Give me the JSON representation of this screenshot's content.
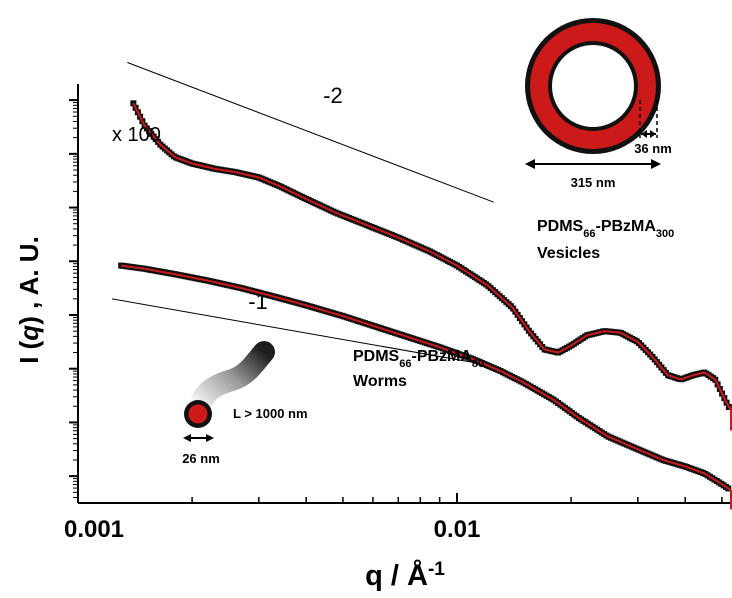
{
  "chart_data": {
    "type": "scatter",
    "xlabel": {
      "base": "q / Å",
      "sup": "-1"
    },
    "ylabel": {
      "pre": "I (",
      "italic": "q",
      "post": ") , A. U."
    },
    "xscale": "log",
    "yscale": "log",
    "xlim": [
      0.001,
      0.065
    ],
    "ylim_decades": [
      -7.5,
      0.3
    ],
    "x_tick_labels": [
      {
        "value": 0.001,
        "label": "0.001"
      },
      {
        "value": 0.01,
        "label": "0.01"
      }
    ],
    "series": [
      {
        "key": "vesicles",
        "marker_color": "#111111",
        "fit_color": "#cc1a1a",
        "points": [
          [
            0.0014,
            -0.06
          ],
          [
            0.0015,
            -0.48
          ],
          [
            0.00165,
            -0.83
          ],
          [
            0.0018,
            -1.06
          ],
          [
            0.002,
            -1.18
          ],
          [
            0.0023,
            -1.28
          ],
          [
            0.0026,
            -1.34
          ],
          [
            0.003,
            -1.44
          ],
          [
            0.0034,
            -1.6
          ],
          [
            0.004,
            -1.84
          ],
          [
            0.0048,
            -2.1
          ],
          [
            0.0058,
            -2.33
          ],
          [
            0.007,
            -2.56
          ],
          [
            0.0085,
            -2.82
          ],
          [
            0.01,
            -3.08
          ],
          [
            0.012,
            -3.44
          ],
          [
            0.014,
            -3.86
          ],
          [
            0.0155,
            -4.3
          ],
          [
            0.017,
            -4.64
          ],
          [
            0.0185,
            -4.7
          ],
          [
            0.02,
            -4.57
          ],
          [
            0.022,
            -4.38
          ],
          [
            0.0245,
            -4.3
          ],
          [
            0.027,
            -4.33
          ],
          [
            0.03,
            -4.5
          ],
          [
            0.033,
            -4.8
          ],
          [
            0.036,
            -5.12
          ],
          [
            0.039,
            -5.2
          ],
          [
            0.042,
            -5.12
          ],
          [
            0.045,
            -5.07
          ],
          [
            0.048,
            -5.2
          ],
          [
            0.052,
            -5.7
          ],
          [
            0.056,
            -6.0
          ],
          [
            0.06,
            -6.1
          ],
          [
            0.064,
            -6.15
          ]
        ]
      },
      {
        "key": "worms",
        "marker_color": "#111111",
        "fit_color": "#cc1a1a",
        "points": [
          [
            0.0013,
            -3.08
          ],
          [
            0.0015,
            -3.14
          ],
          [
            0.0018,
            -3.24
          ],
          [
            0.0022,
            -3.36
          ],
          [
            0.0027,
            -3.5
          ],
          [
            0.0033,
            -3.66
          ],
          [
            0.004,
            -3.82
          ],
          [
            0.005,
            -4.02
          ],
          [
            0.006,
            -4.2
          ],
          [
            0.0075,
            -4.42
          ],
          [
            0.009,
            -4.6
          ],
          [
            0.011,
            -4.82
          ],
          [
            0.013,
            -5.04
          ],
          [
            0.015,
            -5.26
          ],
          [
            0.018,
            -5.58
          ],
          [
            0.021,
            -5.92
          ],
          [
            0.025,
            -6.26
          ],
          [
            0.03,
            -6.5
          ],
          [
            0.035,
            -6.7
          ],
          [
            0.04,
            -6.82
          ],
          [
            0.045,
            -6.95
          ],
          [
            0.05,
            -7.15
          ],
          [
            0.056,
            -7.38
          ],
          [
            0.062,
            -7.55
          ],
          [
            0.065,
            -7.62
          ]
        ]
      }
    ],
    "guide_lines": [
      {
        "label": "-2",
        "from": [
          0.00135,
          0.7
        ],
        "to": [
          0.0125,
          -1.9
        ]
      },
      {
        "label": "-1",
        "from": [
          0.00123,
          -3.7
        ],
        "to": [
          0.0125,
          -4.95
        ]
      }
    ],
    "annotations": {
      "x100": "x 100",
      "slope2": "-2",
      "slope1": "-1",
      "vesicle_name": {
        "pre": "PDMS",
        "sub1": "66",
        "mid": "-PBzMA",
        "sub2": "300"
      },
      "vesicle_morph": "Vesicles",
      "worm_name": {
        "pre": "PDMS",
        "sub1": "66",
        "mid": "-PBzMA",
        "sub2": "80"
      },
      "worm_morph": "Worms",
      "dim_wall": "36 nm",
      "dim_vesicle": "315 nm",
      "dim_worm_length": "L > 1000 nm",
      "dim_worm_diam": "26 nm"
    },
    "colors": {
      "core": "#cc1a1a",
      "outline": "#111111"
    }
  }
}
